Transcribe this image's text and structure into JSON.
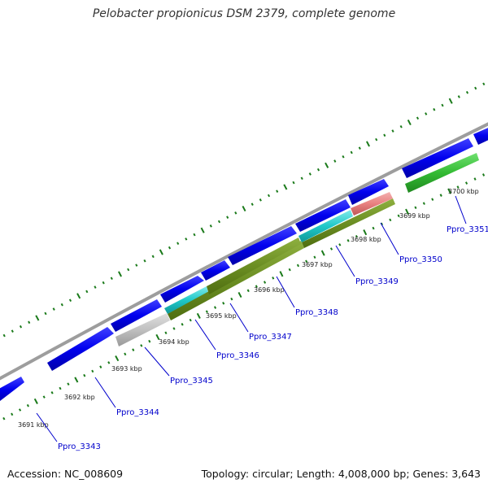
{
  "title": "Pelobacter propionicus DSM 2379, complete genome",
  "accession": "Accession: NC_008609",
  "summary": "Topology: circular; Length: 4,008,000 bp; Genes: 3,643",
  "colors": {
    "backbone": "#8c8c8c",
    "cds": "#0000ee",
    "gene_label": "#0000cc",
    "tick": "#1a7a1a",
    "kbp_label": "#222222",
    "olive": "#6b8e23",
    "cyan": "#20c8c8",
    "gray": "#bdbdbd",
    "pink": "#e88080",
    "green": "#33bb33"
  },
  "kbp_labels": [
    "3691 kbp",
    "3692 kbp",
    "3693 kbp",
    "3694 kbp",
    "3695 kbp",
    "3696 kbp",
    "3697 kbp",
    "3698 kbp",
    "3699 kbp",
    "3700 kbp"
  ],
  "gene_labels": [
    "Ppro_3343",
    "Ppro_3344",
    "Ppro_3345",
    "Ppro_3346",
    "Ppro_3347",
    "Ppro_3348",
    "Ppro_3349",
    "Ppro_3350",
    "Ppro_3351"
  ]
}
